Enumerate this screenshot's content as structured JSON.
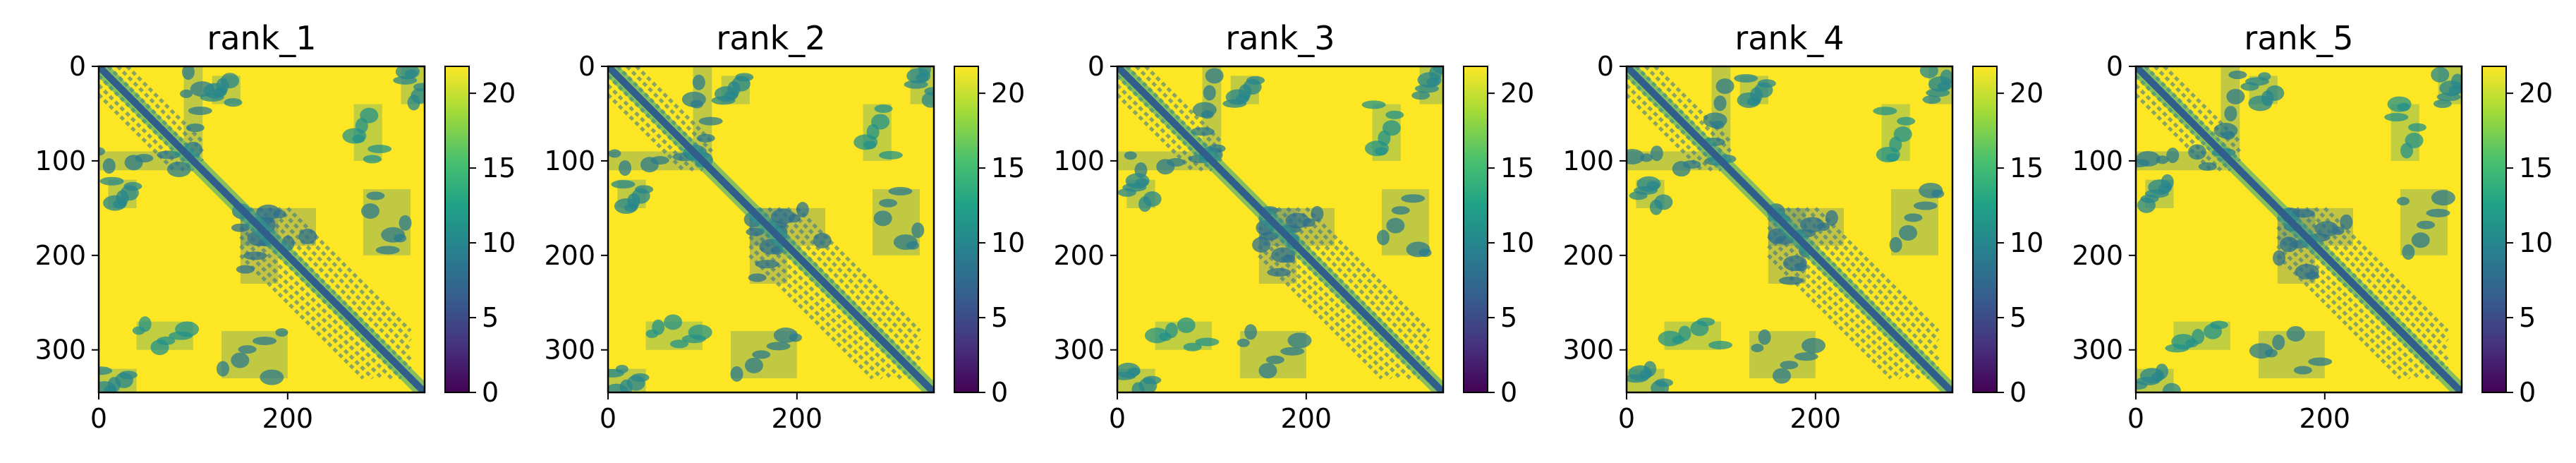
{
  "chart_data": {
    "type": "heatmap",
    "colormap": "viridis",
    "colormap_stops": [
      "#440154",
      "#46327e",
      "#365c8d",
      "#277f8e",
      "#1fa187",
      "#4ac16d",
      "#a0da39",
      "#fde725"
    ],
    "background_color": "#fde725",
    "contact_color": "#2a9d8a",
    "diagonal_color": "#2f5f8a",
    "grid": false,
    "sequence_length": 345,
    "colorbar": {
      "vmin": 0,
      "vmax": 21.8,
      "ticks": [
        "0",
        "5",
        "10",
        "15",
        "20"
      ]
    },
    "x_ticks": [
      "0",
      "200"
    ],
    "y_ticks": [
      "0",
      "100",
      "200",
      "300"
    ],
    "blocks": [
      {
        "start": 0,
        "end": 110,
        "value": 8,
        "strands": 3
      },
      {
        "start": 150,
        "end": 330,
        "value": 8,
        "strands": 5
      }
    ],
    "cross_contacts": [
      {
        "x": [
          0,
          100
        ],
        "y": [
          90,
          110
        ],
        "value": 9
      },
      {
        "x": [
          90,
          110
        ],
        "y": [
          0,
          100
        ],
        "value": 9
      },
      {
        "x": [
          120,
          150
        ],
        "y": [
          10,
          40
        ],
        "value": 10
      },
      {
        "x": [
          10,
          40
        ],
        "y": [
          120,
          150
        ],
        "value": 10
      },
      {
        "x": [
          150,
          230
        ],
        "y": [
          150,
          190
        ],
        "value": 8
      },
      {
        "x": [
          150,
          190
        ],
        "y": [
          150,
          230
        ],
        "value": 8
      },
      {
        "x": [
          280,
          330
        ],
        "y": [
          130,
          200
        ],
        "value": 9
      },
      {
        "x": [
          130,
          200
        ],
        "y": [
          280,
          330
        ],
        "value": 9
      },
      {
        "x": [
          40,
          100
        ],
        "y": [
          270,
          300
        ],
        "value": 11
      },
      {
        "x": [
          270,
          300
        ],
        "y": [
          40,
          100
        ],
        "value": 11
      },
      {
        "x": [
          0,
          40
        ],
        "y": [
          320,
          345
        ],
        "value": 10
      },
      {
        "x": [
          320,
          345
        ],
        "y": [
          0,
          40
        ],
        "value": 10
      }
    ],
    "panels": [
      {
        "title": "rank_1"
      },
      {
        "title": "rank_2"
      },
      {
        "title": "rank_3"
      },
      {
        "title": "rank_4"
      },
      {
        "title": "rank_5"
      }
    ]
  }
}
